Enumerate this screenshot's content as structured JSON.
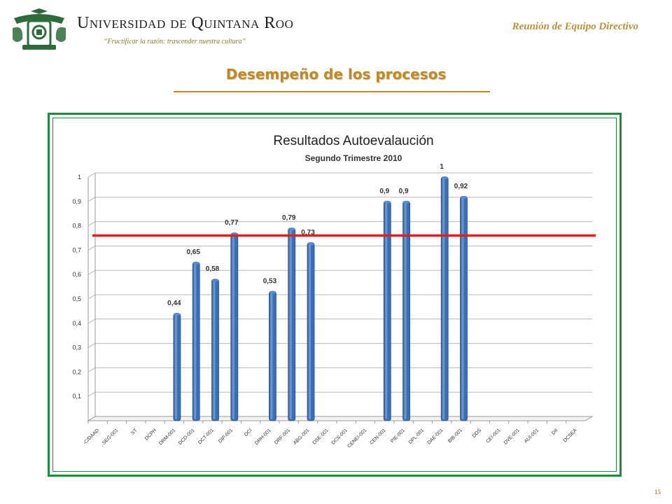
{
  "header": {
    "university_name": "Universidad de Quintana Roo",
    "motto": "“Fructificar la razón: trascender nuestra cultura”",
    "meeting": "Reunión de Equipo Directivo",
    "logo_icon": "university-crest-icon"
  },
  "slide": {
    "title": "Desempeño de los procesos",
    "page_number": "15",
    "title_color": "#c08a1e",
    "frame_color": "#1e8a3c"
  },
  "chart_data": {
    "type": "bar",
    "title": "Resultados Autoevalaución",
    "subtitle": "Segundo Trimestre 2010",
    "xlabel": "",
    "ylabel": "",
    "ylim": [
      0,
      1
    ],
    "y_ticks": [
      "0,1",
      "0,2",
      "0,3",
      "0,4",
      "0,5",
      "0,6",
      "0,7",
      "0,8",
      "0,9",
      "1"
    ],
    "grid": true,
    "threshold": 0.76,
    "threshold_color": "#e02020",
    "bar_color": "#3a6fb5",
    "categories": [
      "-C/DAAD",
      "SEG-001",
      "ST",
      "DCPH",
      "DRM-001",
      "DCD-001",
      "DCT-001",
      "DIP-001",
      "DCI",
      "DRH-001",
      "DRF-001",
      "ABG-001",
      "DSE-001",
      "DCS-001",
      "CENEI-001",
      "CEN-001",
      "PIE-001",
      "DPL-001",
      "DAE-001",
      "BIB-001",
      "DDS",
      "CEI-001",
      "DVE-001",
      "AUI-001",
      "DII",
      "DCSEA"
    ],
    "values": [
      null,
      null,
      null,
      null,
      0.44,
      0.65,
      0.58,
      0.77,
      null,
      0.53,
      0.79,
      0.73,
      null,
      null,
      null,
      0.9,
      0.9,
      null,
      1,
      0.92,
      null,
      null,
      null,
      null,
      null,
      null
    ],
    "value_labels": [
      "",
      "",
      "",
      "",
      "0,44",
      "0,65",
      "0,58",
      "0,77",
      "",
      "0,53",
      "0,79",
      "0,73",
      "",
      "",
      "",
      "0,9",
      "0,9",
      "",
      "1",
      "0,92",
      "",
      "",
      "",
      "",
      "",
      ""
    ]
  }
}
